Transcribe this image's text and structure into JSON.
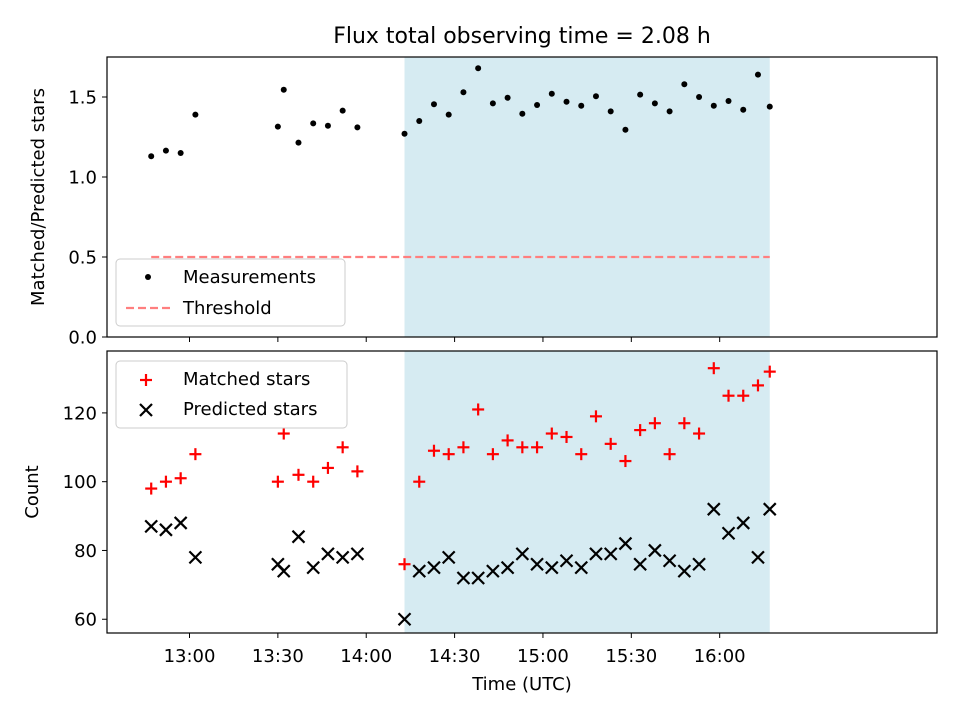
{
  "title": "Flux total observing time = 2.08 h",
  "xlabel": "Time (UTC)",
  "x_ticks": [
    "13:00",
    "13:30",
    "14:00",
    "14:30",
    "15:00",
    "15:30",
    "16:00"
  ],
  "shaded_span": {
    "x0": "14:13",
    "x1": "16:17",
    "color": "#add8e6"
  },
  "colors": {
    "measurement": "#000000",
    "threshold": "#ff7f7f",
    "matched": "#ff0000",
    "predicted": "#000000"
  },
  "chart_data": [
    {
      "type": "scatter",
      "ylabel": "Matched/Predicted stars",
      "ylim": [
        0,
        1.75
      ],
      "y_ticks": [
        "0.0",
        "0.5",
        "1.0",
        "1.5"
      ],
      "legend_position": "lower-left",
      "legend": [
        "Measurements",
        "Threshold"
      ],
      "threshold": {
        "value": 0.5,
        "x_start": "12:47",
        "x_end": "16:17"
      },
      "series": [
        {
          "name": "Measurements",
          "x": [
            "12:47",
            "12:52",
            "12:57",
            "13:02",
            "13:30",
            "13:32",
            "13:37",
            "13:42",
            "13:47",
            "13:52",
            "13:57",
            "14:13",
            "14:18",
            "14:23",
            "14:28",
            "14:33",
            "14:38",
            "14:43",
            "14:48",
            "14:53",
            "14:58",
            "15:03",
            "15:08",
            "15:13",
            "15:18",
            "15:23",
            "15:28",
            "15:33",
            "15:38",
            "15:43",
            "15:48",
            "15:53",
            "15:58",
            "16:03",
            "16:08",
            "16:13",
            "16:17"
          ],
          "values": [
            1.13,
            1.165,
            1.15,
            1.39,
            1.315,
            1.545,
            1.215,
            1.335,
            1.32,
            1.415,
            1.31,
            1.27,
            1.35,
            1.455,
            1.39,
            1.53,
            1.68,
            1.46,
            1.495,
            1.395,
            1.45,
            1.52,
            1.47,
            1.445,
            1.505,
            1.41,
            1.295,
            1.515,
            1.46,
            1.41,
            1.58,
            1.5,
            1.445,
            1.475,
            1.42,
            1.64,
            1.44
          ]
        }
      ]
    },
    {
      "type": "scatter",
      "ylabel": "Count",
      "ylim": [
        56,
        138
      ],
      "y_ticks": [
        "60",
        "80",
        "100",
        "120"
      ],
      "legend_position": "upper-left",
      "legend": [
        "Matched stars",
        "Predicted stars"
      ],
      "series": [
        {
          "name": "Matched stars",
          "x": [
            "12:47",
            "12:52",
            "12:57",
            "13:02",
            "13:30",
            "13:32",
            "13:37",
            "13:42",
            "13:47",
            "13:52",
            "13:57",
            "14:13",
            "14:18",
            "14:23",
            "14:28",
            "14:33",
            "14:38",
            "14:43",
            "14:48",
            "14:53",
            "14:58",
            "15:03",
            "15:08",
            "15:13",
            "15:18",
            "15:23",
            "15:28",
            "15:33",
            "15:38",
            "15:43",
            "15:48",
            "15:53",
            "15:58",
            "16:03",
            "16:08",
            "16:13",
            "16:17"
          ],
          "values": [
            98,
            100,
            101,
            108,
            100,
            114,
            102,
            100,
            104,
            110,
            103,
            76,
            100,
            109,
            108,
            110,
            121,
            108,
            112,
            110,
            110,
            114,
            113,
            108,
            119,
            111,
            106,
            115,
            117,
            108,
            117,
            114,
            133,
            125,
            125,
            128,
            132
          ]
        },
        {
          "name": "Predicted stars",
          "x": [
            "12:47",
            "12:52",
            "12:57",
            "13:02",
            "13:30",
            "13:32",
            "13:37",
            "13:42",
            "13:47",
            "13:52",
            "13:57",
            "14:13",
            "14:18",
            "14:23",
            "14:28",
            "14:33",
            "14:38",
            "14:43",
            "14:48",
            "14:53",
            "14:58",
            "15:03",
            "15:08",
            "15:13",
            "15:18",
            "15:23",
            "15:28",
            "15:33",
            "15:38",
            "15:43",
            "15:48",
            "15:53",
            "15:58",
            "16:03",
            "16:08",
            "16:13",
            "16:17"
          ],
          "values": [
            87,
            86,
            88,
            78,
            76,
            74,
            84,
            75,
            79,
            78,
            79,
            60,
            74,
            75,
            78,
            72,
            72,
            74,
            75,
            79,
            76,
            75,
            77,
            75,
            79,
            79,
            82,
            76,
            80,
            77,
            74,
            76,
            92,
            85,
            88,
            78,
            92
          ]
        }
      ]
    }
  ]
}
